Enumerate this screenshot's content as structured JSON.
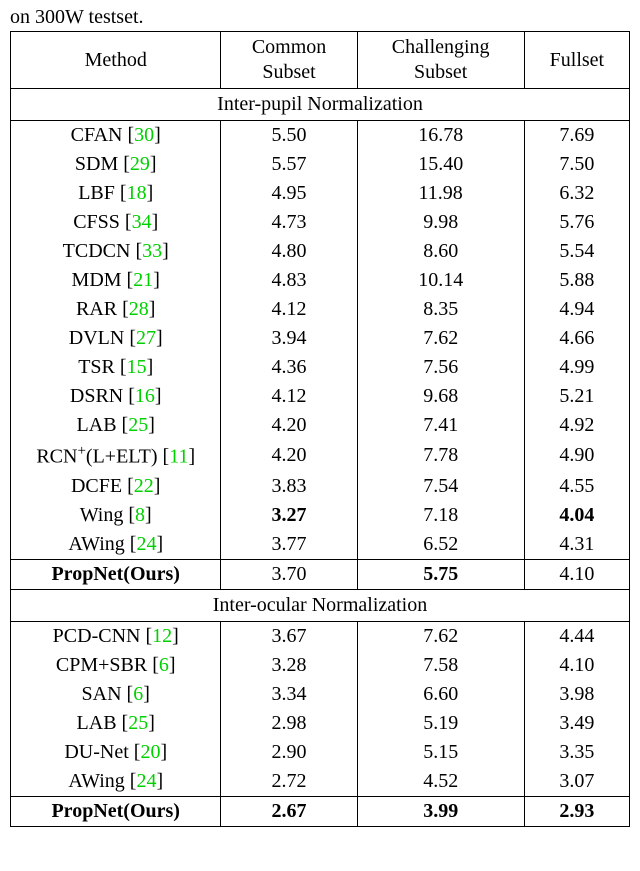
{
  "caption_text": "on 300W testset.",
  "headers": {
    "method": "Method",
    "common1": "Common",
    "common2": "Subset",
    "challenging1": "Challenging",
    "challenging2": "Subset",
    "fullset": "Fullset"
  },
  "sections": {
    "interpupil": "Inter-pupil Normalization",
    "interocular": "Inter-ocular Normalization"
  },
  "ref_color": "#00d000",
  "text_color": "#000000",
  "bg_color": "#ffffff",
  "border_color": "#000000",
  "fonts": {
    "family": "Times New Roman",
    "size_pt": 20,
    "caption_size_pt": 20
  },
  "col_headers": [
    "Method",
    "Common Subset",
    "Challenging Subset",
    "Fullset"
  ],
  "col_widths_pct": [
    34,
    22,
    27,
    17
  ],
  "rows_interpupil": [
    {
      "name": "CFAN",
      "ref": "30",
      "common": "5.50",
      "challenging": "16.78",
      "fullset": "7.69"
    },
    {
      "name": "SDM",
      "ref": "29",
      "common": "5.57",
      "challenging": "15.40",
      "fullset": "7.50"
    },
    {
      "name": "LBF",
      "ref": "18",
      "common": "4.95",
      "challenging": "11.98",
      "fullset": "6.32"
    },
    {
      "name": "CFSS",
      "ref": "34",
      "common": "4.73",
      "challenging": "9.98",
      "fullset": "5.76"
    },
    {
      "name": "TCDCN",
      "ref": "33",
      "common": "4.80",
      "challenging": "8.60",
      "fullset": "5.54"
    },
    {
      "name": "MDM",
      "ref": "21",
      "common": "4.83",
      "challenging": "10.14",
      "fullset": "5.88"
    },
    {
      "name": "RAR",
      "ref": "28",
      "common": "4.12",
      "challenging": "8.35",
      "fullset": "4.94"
    },
    {
      "name": "DVLN",
      "ref": "27",
      "common": "3.94",
      "challenging": "7.62",
      "fullset": "4.66"
    },
    {
      "name": "TSR",
      "ref": "15",
      "common": "4.36",
      "challenging": "7.56",
      "fullset": "4.99"
    },
    {
      "name": "DSRN",
      "ref": "16",
      "common": "4.12",
      "challenging": "9.68",
      "fullset": "5.21"
    },
    {
      "name": "LAB",
      "ref": "25",
      "common": "4.20",
      "challenging": "7.41",
      "fullset": "4.92"
    },
    {
      "name": "RCN",
      "sup": "+",
      "suffix": "(L+ELT)",
      "ref": "11",
      "common": "4.20",
      "challenging": "7.78",
      "fullset": "4.90"
    },
    {
      "name": "DCFE",
      "ref": "22",
      "common": "3.83",
      "challenging": "7.54",
      "fullset": "4.55"
    },
    {
      "name": "Wing",
      "ref": "8",
      "common": "3.27",
      "common_bold": true,
      "challenging": "7.18",
      "fullset": "4.04",
      "fullset_bold": true
    },
    {
      "name": "AWing",
      "ref": "24",
      "common": "3.77",
      "challenging": "6.52",
      "fullset": "4.31"
    }
  ],
  "ours_interpupil": {
    "name": "PropNet(Ours)",
    "common": "3.70",
    "challenging": "5.75",
    "challenging_bold": true,
    "fullset": "4.10"
  },
  "rows_interocular": [
    {
      "name": "PCD-CNN",
      "ref": "12",
      "common": "3.67",
      "challenging": "7.62",
      "fullset": "4.44"
    },
    {
      "name": "CPM+SBR",
      "ref": "6",
      "common": "3.28",
      "challenging": "7.58",
      "fullset": "4.10"
    },
    {
      "name": "SAN",
      "ref": "6",
      "common": "3.34",
      "challenging": "6.60",
      "fullset": "3.98"
    },
    {
      "name": "LAB",
      "ref": "25",
      "common": "2.98",
      "challenging": "5.19",
      "fullset": "3.49"
    },
    {
      "name": "DU-Net",
      "ref": "20",
      "common": "2.90",
      "challenging": "5.15",
      "fullset": "3.35"
    },
    {
      "name": "AWing",
      "ref": "24",
      "common": "2.72",
      "challenging": "4.52",
      "fullset": "3.07"
    }
  ],
  "ours_interocular": {
    "name": "PropNet(Ours)",
    "common": "2.67",
    "common_bold": true,
    "challenging": "3.99",
    "challenging_bold": true,
    "fullset": "2.93",
    "fullset_bold": true
  }
}
